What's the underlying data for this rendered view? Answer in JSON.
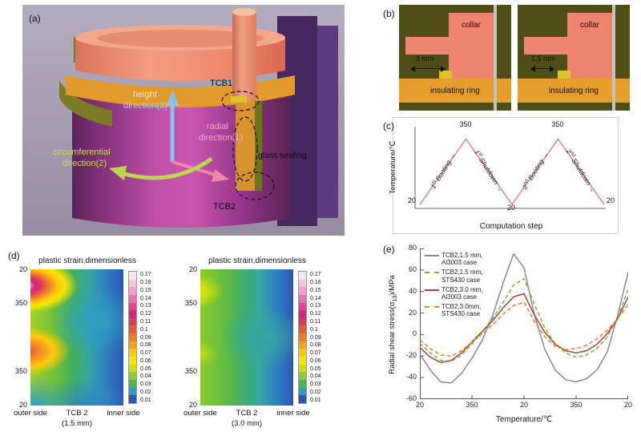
{
  "panels": {
    "a": {
      "label": "(a)",
      "annotations": {
        "height": "height",
        "direction3": "direction(3)",
        "circumferential": "circumferential",
        "direction2": "direction(2)",
        "radial": "radial",
        "direction1": "direction(1)",
        "tcb1": "TCB1",
        "tcb2": "TCB2",
        "glass_sealing": "glass sealing"
      }
    },
    "b": {
      "label": "(b)",
      "schematics": [
        {
          "collar_label": "collar",
          "dimension": "3 mm",
          "ring_label": "insulating ring"
        },
        {
          "collar_label": "collar",
          "dimension": "1.5 mm",
          "ring_label": "insulating ring"
        }
      ]
    },
    "c": {
      "label": "(c)",
      "annotations": [
        {
          "num": "1",
          "ord": "st",
          "word": "Booting",
          "arrow": "→"
        },
        {
          "num": "1",
          "ord": "st",
          "word": "Shutdown",
          "arrow": "→"
        },
        {
          "num": "2",
          "ord": "nd",
          "word": "Booting",
          "arrow": "→"
        },
        {
          "num": "2",
          "ord": "nd",
          "word": "Shutdown",
          "arrow": "→"
        }
      ]
    },
    "d": {
      "label": "(d)"
    },
    "e": {
      "label": "(e)"
    }
  },
  "chart_data": [
    {
      "id": "temperature-profile",
      "type": "line",
      "xlabel": "Computation step",
      "ylabel": "Temperature/℃",
      "x": [
        0,
        1,
        2,
        3,
        4
      ],
      "y": [
        20,
        350,
        20,
        350,
        20
      ],
      "ylim": [
        0,
        380
      ],
      "point_labels": [
        "20",
        "350",
        "20",
        "350",
        "20"
      ],
      "line_color": "#d48c8c",
      "grid": false
    },
    {
      "id": "radial-shear-stress",
      "type": "line",
      "xlabel": "Temperature/℃",
      "ylabel": "Radial shear stress(σ13)/MPa",
      "ylabel_pre": "Radial shear stress(σ",
      "ylabel_sub": "13",
      "ylabel_post": ")/MPa",
      "xtick_labels": [
        "20",
        "350",
        "20",
        "350",
        "20"
      ],
      "ytick_labels": [
        "80",
        "60",
        "40",
        "20",
        "0",
        "-20",
        "-40",
        "-60"
      ],
      "xlim": [
        0,
        4
      ],
      "ylim": [
        -60,
        80
      ],
      "legend_position": "top-left",
      "x": [
        0,
        0.2,
        0.4,
        0.6,
        0.8,
        1,
        1.2,
        1.4,
        1.6,
        1.8,
        2,
        2.2,
        2.4,
        2.6,
        2.8,
        3,
        3.2,
        3.4,
        3.6,
        3.8,
        4
      ],
      "series": [
        {
          "label1": "TCB2,1.5 mm,",
          "label2": "Al3003 case",
          "color": "#7f8aa0",
          "dash": null,
          "values": [
            -18,
            -33,
            -44,
            -45,
            -36,
            -22,
            -5,
            18,
            48,
            75,
            62,
            18,
            -14,
            -33,
            -42,
            -44,
            -41,
            -33,
            -16,
            18,
            58
          ]
        },
        {
          "label1": "TCB2,1.5 mm,",
          "label2": "STS430 case",
          "color": "#7cb342",
          "dash": "5,3",
          "values": [
            -8,
            -17,
            -24,
            -25,
            -19,
            -9,
            3,
            15,
            30,
            46,
            52,
            28,
            6,
            -9,
            -17,
            -21,
            -19,
            -13,
            -2,
            16,
            42
          ]
        },
        {
          "label1": "TCB2,3.0 mm,",
          "label2": "Al3003 case",
          "color": "#b0413c",
          "dash": null,
          "values": [
            -12,
            -21,
            -26,
            -24,
            -17,
            -7,
            3,
            13,
            25,
            35,
            38,
            18,
            2,
            -9,
            -15,
            -17,
            -15,
            -9,
            1,
            15,
            35
          ]
        },
        {
          "label1": "TCB2,3.0mm,",
          "label2": "STS430 case",
          "color": "#e08030",
          "dash": "5,3",
          "values": [
            -5,
            -13,
            -19,
            -20,
            -15,
            -7,
            1,
            9,
            19,
            27,
            30,
            12,
            -2,
            -11,
            -14,
            -13,
            -10,
            -4,
            4,
            15,
            28
          ]
        }
      ]
    },
    {
      "id": "plastic-strain-contours",
      "type": "heatmap",
      "title": "plastic strain,dimensionless",
      "ytick_labels": [
        "20",
        "350",
        "350",
        "20"
      ],
      "xtick_labels": [
        "outer side",
        "TCB 2",
        "inner side"
      ],
      "subplots": [
        {
          "caption": "(1.5 mm)"
        },
        {
          "caption": "(3.0 mm)"
        }
      ],
      "colorbar_ticks": [
        "0.17",
        "0.16",
        "0.15",
        "0.14",
        "0.13",
        "0.12",
        "0.11",
        "0.1",
        "0.09",
        "0.08",
        "0.07",
        "0.06",
        "0.05",
        "0.04",
        "0.03",
        "0.02",
        "0.01"
      ],
      "colorbar_colors": [
        "#f8e8f0",
        "#f4c6de",
        "#ef9fca",
        "#e971b1",
        "#e24495",
        "#d92479",
        "#dc3b57",
        "#e55a3b",
        "#ef7d28",
        "#f7a317",
        "#fdc90c",
        "#f3e507",
        "#c9e010",
        "#8ccb2b",
        "#4db74f",
        "#2f9ec4",
        "#2f55b5"
      ]
    }
  ]
}
